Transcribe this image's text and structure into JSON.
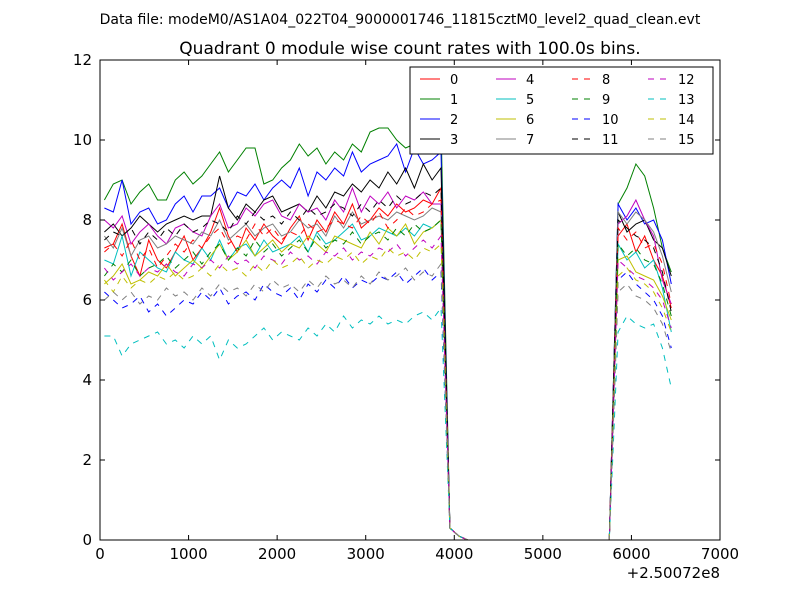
{
  "header": "Data file: modeM0/AS1A04_022T04_9000001746_11815cztM0_level2_quad_clean.evt",
  "chart_data": {
    "type": "line",
    "title": "Quadrant 0 module wise count rates with 100.0s bins.",
    "xlabel": "",
    "ylabel": "",
    "x_offset_label": "+2.50072e8",
    "xlim": [
      0,
      7000
    ],
    "ylim": [
      0,
      12
    ],
    "xticks": [
      0,
      1000,
      2000,
      3000,
      4000,
      5000,
      6000,
      7000
    ],
    "yticks": [
      0,
      2,
      4,
      6,
      8,
      10,
      12
    ],
    "grid": false,
    "legend_position": "top-right",
    "x": [
      50,
      150,
      250,
      350,
      450,
      550,
      650,
      750,
      850,
      950,
      1050,
      1150,
      1250,
      1350,
      1450,
      1550,
      1650,
      1750,
      1850,
      1950,
      2050,
      2150,
      2250,
      2350,
      2450,
      2550,
      2650,
      2750,
      2850,
      2950,
      3050,
      3150,
      3250,
      3350,
      3450,
      3550,
      3650,
      3750,
      3850,
      3950,
      4050,
      4150,
      4250,
      4350,
      4450,
      4550,
      4650,
      4750,
      4850,
      4950,
      5050,
      5150,
      5250,
      5350,
      5450,
      5550,
      5650,
      5750,
      5850,
      5950,
      6050,
      6150,
      6250,
      6350,
      6450
    ],
    "series": [
      {
        "name": "0",
        "color": "#ff0000",
        "dash": "solid",
        "values": [
          7.3,
          7.4,
          7.9,
          7.1,
          6.6,
          7.5,
          7.0,
          6.8,
          7.2,
          7.6,
          7.0,
          7.3,
          7.7,
          8.3,
          7.6,
          7.2,
          7.8,
          7.5,
          7.9,
          7.6,
          7.4,
          7.8,
          8.1,
          7.5,
          8.0,
          7.7,
          8.2,
          7.9,
          8.4,
          7.8,
          8.0,
          8.3,
          8.1,
          8.4,
          8.2,
          8.3,
          8.5,
          8.4,
          8.8,
          0.3,
          0.1,
          0,
          0,
          0,
          0,
          0,
          0,
          0,
          0,
          0,
          0,
          0,
          0,
          0,
          0,
          0,
          0,
          0,
          7.6,
          7.9,
          7.2,
          7.6,
          7.0,
          6.6,
          5.8
        ]
      },
      {
        "name": "1",
        "color": "#008000",
        "dash": "solid",
        "values": [
          8.5,
          8.9,
          9.0,
          8.4,
          8.7,
          8.9,
          8.5,
          8.5,
          9.0,
          9.2,
          8.9,
          9.1,
          9.4,
          9.7,
          9.2,
          9.5,
          9.8,
          9.8,
          8.9,
          9.0,
          9.3,
          9.5,
          9.9,
          9.6,
          9.8,
          9.4,
          9.7,
          9.5,
          9.9,
          9.7,
          10.2,
          10.3,
          10.3,
          10.0,
          9.8,
          9.9,
          10.0,
          10.3,
          10.4,
          0.3,
          0.1,
          0,
          0,
          0,
          0,
          0,
          0,
          0,
          0,
          0,
          0,
          0,
          0,
          0,
          0,
          0,
          0,
          0,
          8.4,
          8.8,
          9.4,
          9.1,
          8.3,
          7.3,
          6.7
        ]
      },
      {
        "name": "2",
        "color": "#0000ff",
        "dash": "solid",
        "values": [
          8.3,
          8.2,
          9.0,
          7.9,
          8.2,
          8.3,
          7.9,
          8.0,
          8.4,
          8.6,
          8.2,
          8.6,
          8.6,
          8.8,
          8.3,
          8.7,
          8.6,
          8.9,
          8.5,
          8.8,
          9.0,
          8.8,
          9.3,
          8.6,
          9.2,
          9.0,
          9.3,
          9.1,
          9.7,
          9.2,
          9.4,
          9.5,
          9.6,
          9.9,
          9.2,
          9.8,
          9.4,
          9.5,
          9.7,
          0.3,
          0.1,
          0,
          0,
          0,
          0,
          0,
          0,
          0,
          0,
          0,
          0,
          0,
          0,
          0,
          0,
          0,
          0,
          0,
          8.4,
          8.0,
          8.3,
          7.9,
          8.0,
          7.5,
          6.4
        ]
      },
      {
        "name": "3",
        "color": "#000000",
        "dash": "solid",
        "values": [
          7.7,
          7.9,
          7.6,
          7.8,
          8.1,
          7.9,
          7.7,
          7.9,
          8.0,
          8.1,
          8.0,
          8.1,
          8.1,
          9.1,
          8.3,
          8.0,
          8.4,
          8.2,
          8.5,
          8.6,
          8.2,
          8.3,
          8.4,
          8.2,
          8.6,
          8.3,
          8.7,
          8.6,
          8.9,
          8.7,
          9.0,
          8.8,
          9.2,
          8.9,
          9.3,
          8.8,
          9.4,
          9.0,
          9.3,
          0.3,
          0.1,
          0,
          0,
          0,
          0,
          0,
          0,
          0,
          0,
          0,
          0,
          0,
          0,
          0,
          0,
          0,
          0,
          0,
          8.2,
          7.7,
          7.9,
          8.0,
          7.5,
          7.3,
          6.6
        ]
      },
      {
        "name": "4",
        "color": "#bf00bf",
        "dash": "solid",
        "values": [
          8.0,
          7.8,
          8.1,
          7.4,
          7.7,
          7.9,
          7.6,
          7.4,
          7.8,
          7.9,
          7.7,
          7.6,
          8.1,
          8.4,
          7.8,
          7.9,
          8.3,
          8.1,
          8.4,
          8.5,
          8.1,
          8.0,
          8.4,
          8.2,
          8.3,
          8.0,
          8.5,
          8.2,
          8.8,
          8.2,
          8.6,
          8.4,
          8.7,
          8.3,
          8.6,
          8.5,
          8.7,
          8.4,
          8.4,
          0.3,
          0.1,
          0,
          0,
          0,
          0,
          0,
          0,
          0,
          0,
          0,
          0,
          0,
          0,
          0,
          0,
          0,
          0,
          0,
          7.9,
          8.1,
          8.5,
          8.0,
          7.6,
          6.5,
          5.9
        ]
      },
      {
        "name": "5",
        "color": "#00bfbf",
        "dash": "solid",
        "values": [
          7.0,
          6.9,
          7.6,
          6.6,
          7.2,
          7.0,
          6.8,
          6.7,
          7.2,
          7.0,
          6.9,
          7.3,
          7.0,
          7.5,
          7.0,
          7.3,
          7.4,
          7.1,
          7.5,
          7.2,
          7.3,
          7.4,
          7.6,
          7.2,
          7.7,
          7.4,
          7.5,
          7.7,
          7.9,
          7.5,
          7.6,
          7.8,
          7.7,
          7.6,
          7.8,
          7.6,
          7.9,
          7.8,
          8.0,
          0.3,
          0.1,
          0,
          0,
          0,
          0,
          0,
          0,
          0,
          0,
          0,
          0,
          0,
          0,
          0,
          0,
          0,
          0,
          0,
          7.4,
          7.0,
          7.2,
          6.8,
          7.0,
          6.3,
          5.2
        ]
      },
      {
        "name": "6",
        "color": "#bfbf00",
        "dash": "solid",
        "values": [
          6.4,
          6.6,
          6.9,
          6.4,
          6.5,
          6.7,
          6.6,
          6.9,
          6.6,
          6.8,
          7.0,
          6.8,
          7.1,
          7.4,
          7.0,
          7.2,
          7.5,
          7.1,
          7.3,
          7.5,
          7.2,
          7.4,
          7.3,
          7.6,
          7.4,
          7.2,
          7.6,
          7.5,
          7.4,
          7.3,
          7.7,
          7.4,
          7.8,
          7.6,
          7.9,
          7.4,
          7.7,
          7.8,
          8.0,
          0.3,
          0.1,
          0,
          0,
          0,
          0,
          0,
          0,
          0,
          0,
          0,
          0,
          0,
          0,
          0,
          0,
          0,
          0,
          0,
          7.0,
          7.1,
          6.7,
          6.6,
          6.5,
          6.1,
          5.5
        ]
      },
      {
        "name": "7",
        "color": "#808080",
        "dash": "solid",
        "values": [
          7.6,
          7.3,
          7.8,
          7.1,
          7.5,
          7.6,
          7.3,
          7.4,
          7.6,
          7.5,
          7.4,
          7.7,
          7.6,
          8.0,
          7.5,
          7.7,
          7.9,
          7.6,
          7.8,
          7.9,
          7.6,
          7.7,
          8.0,
          7.8,
          7.9,
          7.6,
          8.1,
          7.8,
          8.2,
          7.9,
          8.0,
          8.1,
          8.0,
          8.2,
          8.1,
          8.0,
          8.1,
          8.3,
          8.2,
          0.3,
          0.1,
          0,
          0,
          0,
          0,
          0,
          0,
          0,
          0,
          0,
          0,
          0,
          0,
          0,
          0,
          0,
          0,
          0,
          8.2,
          7.9,
          8.2,
          8.0,
          7.7,
          7.1,
          6.2
        ]
      },
      {
        "name": "8",
        "color": "#ff0000",
        "dash": "dashed",
        "values": [
          7.2,
          7.4,
          7.1,
          7.5,
          7.0,
          7.3,
          6.8,
          7.1,
          7.4,
          7.2,
          7.5,
          7.3,
          7.6,
          7.8,
          7.4,
          7.6,
          7.5,
          7.9,
          7.6,
          7.8,
          7.5,
          7.7,
          7.6,
          7.9,
          7.7,
          7.8,
          8.0,
          7.9,
          7.8,
          8.1,
          7.9,
          8.2,
          7.8,
          8.0,
          8.3,
          8.1,
          8.2,
          8.4,
          8.5,
          0.3,
          0.1,
          0,
          0,
          0,
          0,
          0,
          0,
          0,
          0,
          0,
          0,
          0,
          0,
          0,
          0,
          0,
          0,
          0,
          7.8,
          7.5,
          7.7,
          7.3,
          7.4,
          6.9,
          5.9
        ]
      },
      {
        "name": "9",
        "color": "#008000",
        "dash": "dashed",
        "values": [
          6.6,
          6.9,
          6.7,
          7.0,
          6.6,
          6.8,
          6.9,
          7.1,
          6.8,
          7.0,
          7.2,
          6.9,
          7.2,
          7.4,
          7.0,
          7.3,
          7.1,
          7.5,
          7.2,
          7.4,
          7.1,
          7.3,
          7.5,
          7.2,
          7.6,
          7.3,
          7.5,
          7.4,
          7.7,
          7.4,
          7.6,
          7.7,
          7.5,
          7.8,
          7.6,
          7.9,
          7.7,
          7.8,
          8.0,
          0.3,
          0.1,
          0,
          0,
          0,
          0,
          0,
          0,
          0,
          0,
          0,
          0,
          0,
          0,
          0,
          0,
          0,
          0,
          0,
          7.4,
          7.1,
          7.3,
          7.0,
          6.9,
          6.4,
          5.6
        ]
      },
      {
        "name": "10",
        "color": "#0000ff",
        "dash": "dashed",
        "values": [
          6.2,
          6.0,
          5.8,
          5.9,
          6.1,
          5.7,
          5.9,
          5.6,
          5.8,
          6.0,
          5.9,
          6.2,
          6.0,
          6.3,
          5.9,
          6.1,
          6.2,
          6.0,
          6.4,
          6.2,
          6.1,
          6.3,
          6.0,
          6.4,
          6.2,
          6.5,
          6.3,
          6.6,
          6.3,
          6.5,
          6.4,
          6.6,
          6.5,
          6.7,
          6.4,
          6.6,
          6.8,
          6.5,
          6.7,
          0.3,
          0.1,
          0,
          0,
          0,
          0,
          0,
          0,
          0,
          0,
          0,
          0,
          0,
          0,
          0,
          0,
          0,
          0,
          0,
          6.5,
          6.7,
          6.4,
          6.2,
          6.0,
          5.6,
          4.8
        ]
      },
      {
        "name": "11",
        "color": "#000000",
        "dash": "dashed",
        "values": [
          7.5,
          7.7,
          7.6,
          7.8,
          7.4,
          7.7,
          7.5,
          7.8,
          7.6,
          7.9,
          7.7,
          7.8,
          8.0,
          7.9,
          7.7,
          8.1,
          7.9,
          8.2,
          8.0,
          8.1,
          7.9,
          8.2,
          8.0,
          8.3,
          8.1,
          8.2,
          8.4,
          8.3,
          8.1,
          8.4,
          8.2,
          8.5,
          8.3,
          8.6,
          8.4,
          8.5,
          8.7,
          8.6,
          8.8,
          0.3,
          0.1,
          0,
          0,
          0,
          0,
          0,
          0,
          0,
          0,
          0,
          0,
          0,
          0,
          0,
          0,
          0,
          0,
          0,
          8.0,
          7.8,
          7.6,
          7.5,
          7.3,
          6.7,
          5.7
        ]
      },
      {
        "name": "12",
        "color": "#bf00bf",
        "dash": "dashed",
        "values": [
          6.8,
          6.5,
          6.7,
          6.9,
          6.6,
          6.8,
          6.7,
          6.9,
          6.7,
          6.6,
          6.9,
          6.8,
          7.0,
          6.8,
          7.1,
          6.9,
          7.0,
          6.8,
          7.1,
          7.0,
          6.9,
          7.2,
          7.0,
          7.1,
          6.9,
          7.2,
          7.1,
          7.3,
          7.0,
          7.2,
          7.1,
          7.3,
          7.2,
          7.4,
          7.1,
          7.3,
          7.5,
          7.3,
          7.6,
          0.3,
          0.1,
          0,
          0,
          0,
          0,
          0,
          0,
          0,
          0,
          0,
          0,
          0,
          0,
          0,
          0,
          0,
          0,
          0,
          7.0,
          6.8,
          6.6,
          6.5,
          6.3,
          6.0,
          5.3
        ]
      },
      {
        "name": "13",
        "color": "#00bfbf",
        "dash": "dashed",
        "values": [
          5.1,
          5.1,
          4.6,
          4.9,
          5.0,
          5.1,
          5.2,
          4.9,
          5.0,
          4.8,
          5.1,
          4.9,
          5.1,
          4.5,
          5.0,
          4.8,
          4.9,
          5.1,
          5.3,
          5.0,
          5.2,
          5.1,
          5.0,
          5.3,
          5.1,
          5.4,
          5.2,
          5.6,
          5.3,
          5.5,
          5.4,
          5.6,
          5.4,
          5.5,
          5.4,
          5.6,
          5.7,
          5.5,
          5.8,
          0.3,
          0.1,
          0,
          0,
          0,
          0,
          0,
          0,
          0,
          0,
          0,
          0,
          0,
          0,
          0,
          0,
          0,
          0,
          0,
          5.2,
          5.6,
          5.4,
          5.3,
          5.4,
          4.8,
          3.8
        ]
      },
      {
        "name": "14",
        "color": "#bfbf00",
        "dash": "dashed",
        "values": [
          6.5,
          6.2,
          6.6,
          6.3,
          6.5,
          6.4,
          6.6,
          6.5,
          6.7,
          6.5,
          6.6,
          6.8,
          6.6,
          6.9,
          6.7,
          6.8,
          6.6,
          6.9,
          6.7,
          7.0,
          6.8,
          6.9,
          7.1,
          6.8,
          7.0,
          6.9,
          7.1,
          7.0,
          7.2,
          6.9,
          7.1,
          7.0,
          7.3,
          7.1,
          7.2,
          7.0,
          7.3,
          7.2,
          7.4,
          0.3,
          0.1,
          0,
          0,
          0,
          0,
          0,
          0,
          0,
          0,
          0,
          0,
          0,
          0,
          0,
          0,
          0,
          0,
          0,
          6.6,
          6.8,
          6.5,
          6.4,
          6.2,
          5.8,
          5.2
        ]
      },
      {
        "name": "15",
        "color": "#808080",
        "dash": "dashed",
        "values": [
          6.0,
          6.2,
          6.0,
          6.2,
          5.9,
          6.1,
          6.0,
          6.3,
          6.1,
          6.2,
          6.0,
          6.3,
          6.1,
          6.4,
          6.2,
          6.3,
          6.1,
          6.4,
          6.2,
          6.5,
          6.3,
          6.4,
          6.2,
          6.5,
          6.3,
          6.6,
          6.4,
          6.5,
          6.3,
          6.6,
          6.4,
          6.7,
          6.5,
          6.6,
          6.8,
          6.5,
          6.7,
          6.6,
          6.9,
          0.3,
          0.1,
          0,
          0,
          0,
          0,
          0,
          0,
          0,
          0,
          0,
          0,
          0,
          0,
          0,
          0,
          0,
          0,
          0,
          6.2,
          6.4,
          6.1,
          6.0,
          5.8,
          5.4,
          4.7
        ]
      }
    ]
  }
}
